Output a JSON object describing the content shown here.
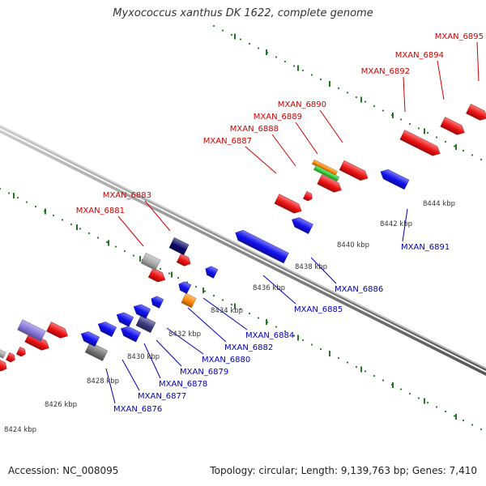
{
  "title": "Myxococcus xanthus DK 1622, complete genome",
  "footer": {
    "accession": "Accession: NC_008095",
    "stats": "Topology: circular; Length: 9,139,763 bp; Genes: 7,410"
  },
  "colors": {
    "forward": "#ee1111",
    "reverse": "#1111ee",
    "navy": "#0a0a6a",
    "orange": "#ff8800",
    "green": "#33cc33",
    "lavender": "#8877dd",
    "gray": "#777777",
    "label_forward": "#cc0000",
    "label_reverse": "#0000bb",
    "tick": "#227722",
    "backbone": "#999999"
  },
  "scale_labels": [
    "8424 kbp",
    "8426 kbp",
    "8428 kbp",
    "8430 kbp",
    "8432 kbp",
    "8434 kbp",
    "8436 kbp",
    "8438 kbp",
    "8440 kbp",
    "8442 kbp",
    "8444 kbp"
  ],
  "forward_labels": [
    "MXAN_6881",
    "MXAN_6883",
    "MXAN_6887",
    "MXAN_6888",
    "MXAN_6889",
    "MXAN_6890",
    "MXAN_6892",
    "MXAN_6894",
    "MXAN_6895"
  ],
  "reverse_labels": [
    "MXAN_6876",
    "MXAN_6877",
    "MXAN_6878",
    "MXAN_6879",
    "MXAN_6880",
    "MXAN_6882",
    "MXAN_6884",
    "MXAN_6885",
    "MXAN_6886",
    "MXAN_6891"
  ]
}
